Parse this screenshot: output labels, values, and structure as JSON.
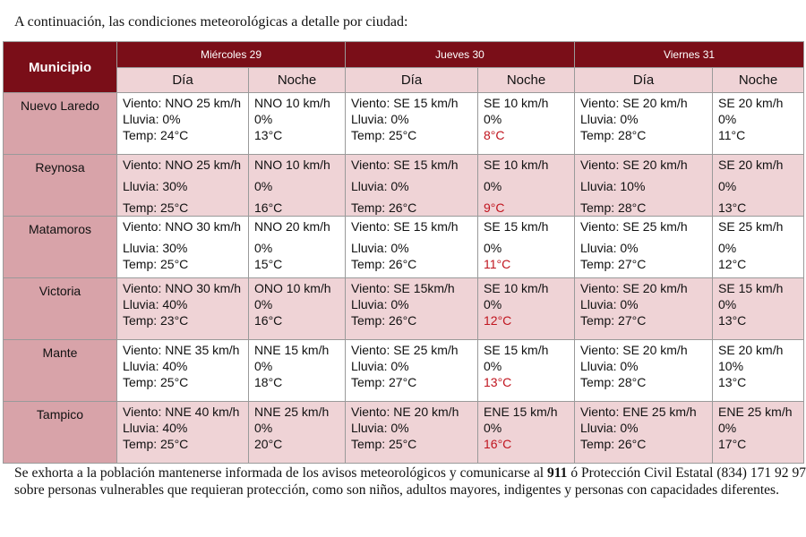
{
  "intro": "A continuación, las condiciones meteorológicas a detalle por ciudad:",
  "table": {
    "municipio_header": "Municipio",
    "days": [
      "Miércoles 29",
      "Jueves 30",
      "Viernes 31"
    ],
    "dia_label": "Día",
    "noche_label": "Noche",
    "rows": [
      {
        "name": "Nuevo Laredo",
        "cells": [
          {
            "l1": "Viento: NNO 25 km/h",
            "l2": "Lluvia: 0%",
            "l3": "Temp: 24°C"
          },
          {
            "l1": "NNO 10 km/h",
            "l2": "0%",
            "l3": "13°C"
          },
          {
            "l1": "Viento: SE 15 km/h",
            "l2": "Lluvia: 0%",
            "l3": "Temp: 25°C"
          },
          {
            "l1": "SE 10 km/h",
            "l2": "0%",
            "l3": "8°C"
          },
          {
            "l1": "Viento: SE 20 km/h",
            "l2": "Lluvia: 0%",
            "l3": "Temp: 28°C"
          },
          {
            "l1": "SE 20 km/h",
            "l2": "0%",
            "l3": "11°C"
          }
        ]
      },
      {
        "name": "Reynosa",
        "cells": [
          {
            "l1": "Viento: NNO 25 km/h",
            "l2": "Lluvia: 30%",
            "l3": "Temp: 25°C"
          },
          {
            "l1": "NNO 10 km/h",
            "l2": "0%",
            "l3": "16°C"
          },
          {
            "l1": "Viento: SE 15 km/h",
            "l2": "Lluvia: 0%",
            "l3": "Temp: 26°C"
          },
          {
            "l1": "SE 10 km/h",
            "l2": "0%",
            "l3": "9°C"
          },
          {
            "l1": "Viento: SE 20 km/h",
            "l2": "Lluvia: 10%",
            "l3": "Temp: 28°C"
          },
          {
            "l1": "SE 20 km/h",
            "l2": "0%",
            "l3": "13°C"
          }
        ]
      },
      {
        "name": "Matamoros",
        "cells": [
          {
            "l1": "Viento: NNO 30 km/h",
            "l2": "Lluvia: 30%",
            "l3": "Temp: 25°C"
          },
          {
            "l1": "NNO 20 km/h",
            "l2": "0%",
            "l3": "15°C"
          },
          {
            "l1": "Viento: SE 15 km/h",
            "l2": "Lluvia: 0%",
            "l3": "Temp: 26°C"
          },
          {
            "l1": "SE 15 km/h",
            "l2": "0%",
            "l3": "11°C"
          },
          {
            "l1": "Viento: SE 25 km/h",
            "l2": "Lluvia: 0%",
            "l3": "Temp: 27°C"
          },
          {
            "l1": "SE 25 km/h",
            "l2": "0%",
            "l3": "12°C"
          }
        ]
      },
      {
        "name": "Victoria",
        "cells": [
          {
            "l1": "Viento: NNO 30 km/h",
            "l2": "Lluvia: 40%",
            "l3": "Temp: 23°C"
          },
          {
            "l1": "ONO 10 km/h",
            "l2": "0%",
            "l3": "16°C"
          },
          {
            "l1": "Viento: SE 15km/h",
            "l2": "Lluvia: 0%",
            "l3": "Temp: 26°C"
          },
          {
            "l1": "SE 10 km/h",
            "l2": "0%",
            "l3": "12°C"
          },
          {
            "l1": "Viento: SE 20 km/h",
            "l2": "Lluvia: 0%",
            "l3": "Temp: 27°C"
          },
          {
            "l1": "SE 15 km/h",
            "l2": "0%",
            "l3": "13°C"
          }
        ]
      },
      {
        "name": "Mante",
        "cells": [
          {
            "l1": "Viento: NNE 35 km/h",
            "l2": "Lluvia: 40%",
            "l3": "Temp: 25°C"
          },
          {
            "l1": "NNE 15 km/h",
            "l2": "0%",
            "l3": "18°C"
          },
          {
            "l1": "Viento: SE 25 km/h",
            "l2": "Lluvia: 0%",
            "l3": "Temp: 27°C"
          },
          {
            "l1": "SE 15 km/h",
            "l2": "0%",
            "l3": "13°C"
          },
          {
            "l1": "Viento: SE 20 km/h",
            "l2": "Lluvia: 0%",
            "l3": "Temp: 28°C"
          },
          {
            "l1": "SE 20 km/h",
            "l2": "10%",
            "l3": "13°C"
          }
        ]
      },
      {
        "name": "Tampico",
        "cells": [
          {
            "l1": "Viento: NNE 40 km/h",
            "l2": "Lluvia: 40%",
            "l3": "Temp: 25°C"
          },
          {
            "l1": "NNE 25 km/h",
            "l2": "0%",
            "l3": "20°C"
          },
          {
            "l1": "Viento: NE 20 km/h",
            "l2": "Lluvia: 0%",
            "l3": "Temp: 25°C"
          },
          {
            "l1": "ENE 15 km/h",
            "l2": "0%",
            "l3": "16°C"
          },
          {
            "l1": "Viento: ENE 25 km/h",
            "l2": "Lluvia: 0%",
            "l3": "Temp: 26°C"
          },
          {
            "l1": "ENE 25 km/h",
            "l2": "0%",
            "l3": "17°C"
          }
        ]
      }
    ]
  },
  "outro": {
    "before": "Se exhorta a la población mantenerse informada de los avisos meteorológicos y comunicarse al ",
    "emergency_number": "911",
    "after": " ó Protección Civil Estatal (834) 171 92 97 sobre personas vulnerables que requieran protección, como son niños, adultos mayores, indigentes y personas con capacidades diferentes."
  },
  "colors": {
    "header_red": "#7a0e18",
    "municipio_cell": "#d8a3a9",
    "light_pink": "#efd3d6",
    "night_temp_red": "#c0141e"
  }
}
